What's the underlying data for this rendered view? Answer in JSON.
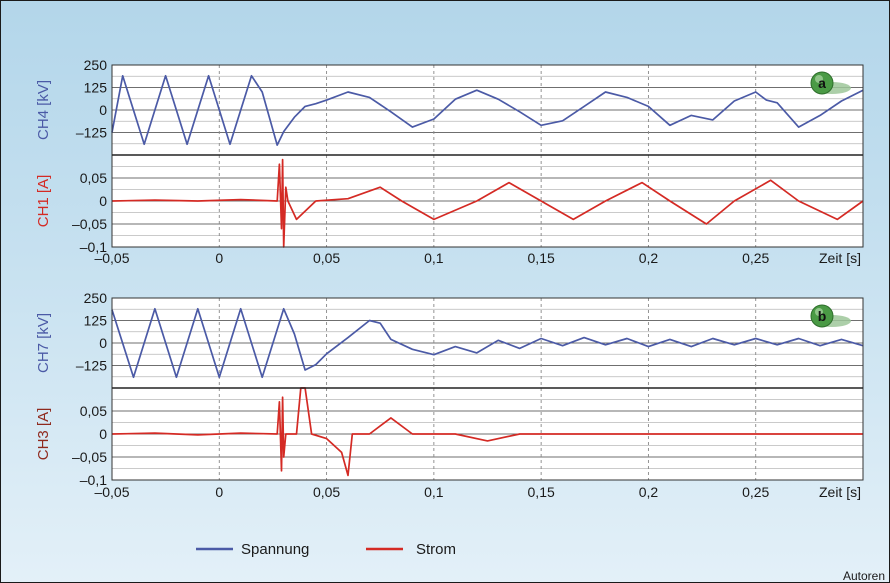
{
  "colors": {
    "voltage": "#4b5aa6",
    "current": "#d42a24",
    "current_dark": "#8f2a1e",
    "grid": "#8a8a8a"
  },
  "x_axis": {
    "label": "Zeit [s]",
    "range": [
      -0.05,
      0.3
    ],
    "ticks": [
      -0.05,
      0,
      0.05,
      0.1,
      0.15,
      0.2,
      0.25
    ],
    "tick_labels": [
      "–0,05",
      "0",
      "0,05",
      "0,1",
      "0,15",
      "0,2",
      "0,25"
    ]
  },
  "legend": {
    "voltage_label": "Spannung",
    "current_label": "Strom"
  },
  "credit": "Autoren",
  "chart_data": [
    {
      "type": "line",
      "panel": "a",
      "badge": "a",
      "voltage": {
        "ylabel": "CH4 [kV]",
        "ylim": [
          -250,
          250
        ],
        "ticks": [
          250,
          125,
          0,
          -125
        ],
        "tick_labels": [
          "250",
          "125",
          "0",
          "–125"
        ],
        "points": [
          [
            -0.05,
            -125
          ],
          [
            -0.045,
            190
          ],
          [
            -0.035,
            -190
          ],
          [
            -0.025,
            190
          ],
          [
            -0.015,
            -190
          ],
          [
            -0.005,
            190
          ],
          [
            0.005,
            -190
          ],
          [
            0.015,
            190
          ],
          [
            0.02,
            100
          ],
          [
            0.027,
            -195
          ],
          [
            0.03,
            -120
          ],
          [
            0.035,
            -40
          ],
          [
            0.04,
            20
          ],
          [
            0.045,
            35
          ],
          [
            0.05,
            55
          ],
          [
            0.06,
            100
          ],
          [
            0.07,
            70
          ],
          [
            0.08,
            -10
          ],
          [
            0.09,
            -95
          ],
          [
            0.1,
            -50
          ],
          [
            0.11,
            60
          ],
          [
            0.12,
            110
          ],
          [
            0.13,
            60
          ],
          [
            0.14,
            -10
          ],
          [
            0.15,
            -85
          ],
          [
            0.16,
            -60
          ],
          [
            0.17,
            20
          ],
          [
            0.18,
            100
          ],
          [
            0.19,
            70
          ],
          [
            0.2,
            20
          ],
          [
            0.21,
            -85
          ],
          [
            0.22,
            -30
          ],
          [
            0.23,
            -55
          ],
          [
            0.24,
            50
          ],
          [
            0.25,
            100
          ],
          [
            0.255,
            55
          ],
          [
            0.26,
            40
          ],
          [
            0.27,
            -95
          ],
          [
            0.28,
            -30
          ],
          [
            0.29,
            50
          ],
          [
            0.3,
            110
          ]
        ]
      },
      "current": {
        "ylabel": "CH1 [A]",
        "ylim": [
          -0.1,
          0.1
        ],
        "ticks": [
          0.05,
          0,
          -0.05,
          -0.1
        ],
        "tick_labels": [
          "0,05",
          "0",
          "–0,05",
          "–0,1"
        ],
        "points": [
          [
            -0.05,
            0
          ],
          [
            -0.03,
            0.002
          ],
          [
            -0.01,
            0
          ],
          [
            0.01,
            0.003
          ],
          [
            0.027,
            0
          ],
          [
            0.028,
            0.08
          ],
          [
            0.029,
            -0.06
          ],
          [
            0.0295,
            0.09
          ],
          [
            0.03,
            -0.1
          ],
          [
            0.031,
            0.03
          ],
          [
            0.032,
            0
          ],
          [
            0.036,
            -0.04
          ],
          [
            0.045,
            0
          ],
          [
            0.06,
            0.005
          ],
          [
            0.075,
            0.03
          ],
          [
            0.085,
            0
          ],
          [
            0.1,
            -0.04
          ],
          [
            0.12,
            0
          ],
          [
            0.135,
            0.04
          ],
          [
            0.15,
            0
          ],
          [
            0.165,
            -0.04
          ],
          [
            0.18,
            0
          ],
          [
            0.197,
            0.04
          ],
          [
            0.21,
            0
          ],
          [
            0.227,
            -0.05
          ],
          [
            0.24,
            0
          ],
          [
            0.257,
            0.045
          ],
          [
            0.27,
            0
          ],
          [
            0.288,
            -0.04
          ],
          [
            0.3,
            0
          ]
        ]
      }
    },
    {
      "type": "line",
      "panel": "b",
      "badge": "b",
      "voltage": {
        "ylabel": "CH7 [kV]",
        "ylim": [
          -250,
          250
        ],
        "ticks": [
          250,
          125,
          0,
          -125
        ],
        "tick_labels": [
          "250",
          "125",
          "0",
          "–125"
        ],
        "points": [
          [
            -0.05,
            185
          ],
          [
            -0.04,
            -190
          ],
          [
            -0.03,
            190
          ],
          [
            -0.02,
            -190
          ],
          [
            -0.01,
            190
          ],
          [
            0,
            -190
          ],
          [
            0.01,
            190
          ],
          [
            0.02,
            -190
          ],
          [
            0.03,
            190
          ],
          [
            0.035,
            50
          ],
          [
            0.04,
            -150
          ],
          [
            0.045,
            -120
          ],
          [
            0.05,
            -60
          ],
          [
            0.06,
            30
          ],
          [
            0.07,
            125
          ],
          [
            0.075,
            110
          ],
          [
            0.08,
            20
          ],
          [
            0.09,
            -35
          ],
          [
            0.1,
            -65
          ],
          [
            0.11,
            -20
          ],
          [
            0.12,
            -55
          ],
          [
            0.13,
            15
          ],
          [
            0.14,
            -30
          ],
          [
            0.15,
            25
          ],
          [
            0.16,
            -15
          ],
          [
            0.17,
            30
          ],
          [
            0.18,
            -10
          ],
          [
            0.19,
            25
          ],
          [
            0.2,
            -20
          ],
          [
            0.21,
            20
          ],
          [
            0.22,
            -20
          ],
          [
            0.23,
            25
          ],
          [
            0.24,
            -10
          ],
          [
            0.25,
            25
          ],
          [
            0.26,
            -10
          ],
          [
            0.27,
            25
          ],
          [
            0.28,
            -15
          ],
          [
            0.29,
            20
          ],
          [
            0.3,
            -15
          ]
        ]
      },
      "current": {
        "ylabel": "CH3 [A]",
        "ylim": [
          -0.1,
          0.1
        ],
        "ticks": [
          0.05,
          0,
          -0.05,
          -0.1
        ],
        "tick_labels": [
          "0,05",
          "0",
          "–0,05",
          "–0,1"
        ],
        "points": [
          [
            -0.05,
            0
          ],
          [
            -0.03,
            0.002
          ],
          [
            -0.01,
            -0.002
          ],
          [
            0.01,
            0.002
          ],
          [
            0.027,
            0
          ],
          [
            0.028,
            0.07
          ],
          [
            0.029,
            -0.08
          ],
          [
            0.0295,
            0.08
          ],
          [
            0.03,
            -0.05
          ],
          [
            0.031,
            0
          ],
          [
            0.036,
            0
          ],
          [
            0.038,
            0.1
          ],
          [
            0.04,
            0.1
          ],
          [
            0.043,
            0
          ],
          [
            0.05,
            -0.01
          ],
          [
            0.057,
            -0.04
          ],
          [
            0.06,
            -0.09
          ],
          [
            0.062,
            0
          ],
          [
            0.07,
            0
          ],
          [
            0.08,
            0.035
          ],
          [
            0.09,
            0
          ],
          [
            0.11,
            0
          ],
          [
            0.125,
            -0.015
          ],
          [
            0.14,
            0
          ],
          [
            0.3,
            0
          ]
        ]
      }
    }
  ]
}
